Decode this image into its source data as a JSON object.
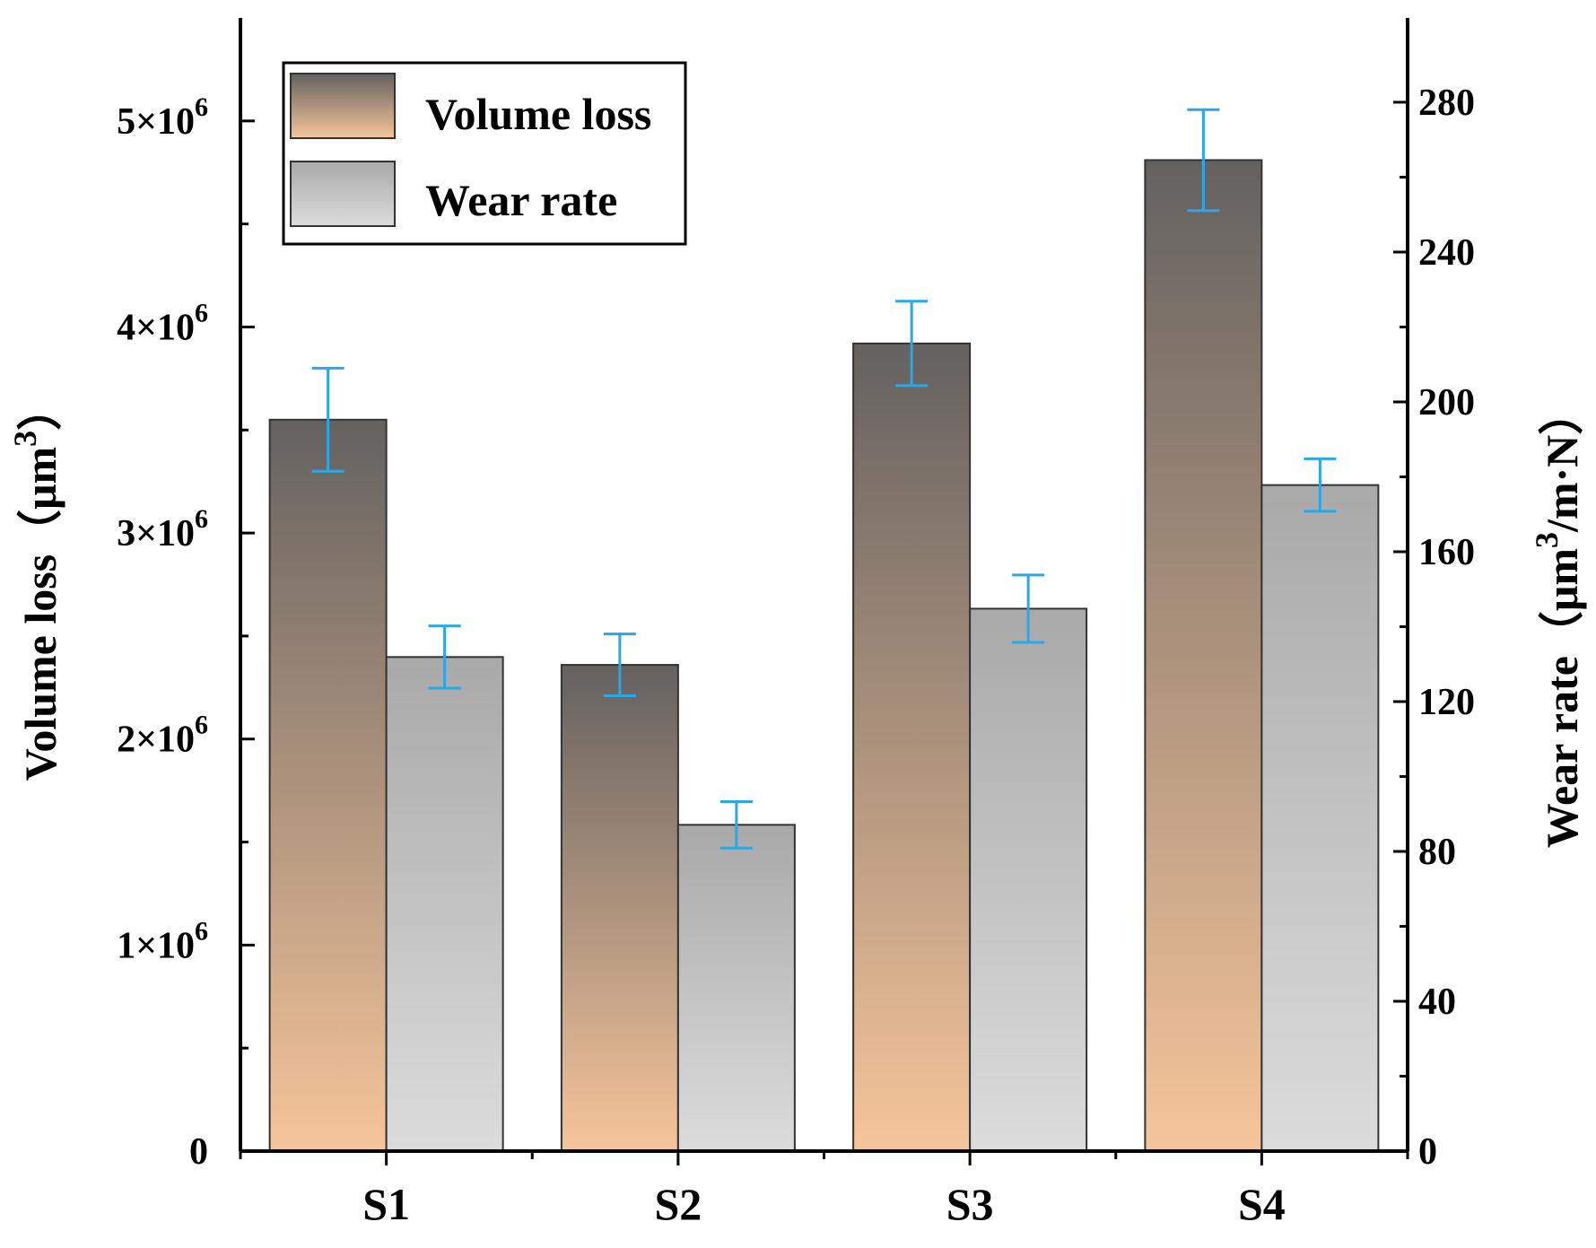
{
  "chart_data": {
    "type": "bar",
    "categories": [
      "S1",
      "S2",
      "S3",
      "S4"
    ],
    "series": [
      {
        "name": "Volume loss",
        "axis": "left",
        "values": [
          3550000,
          2360000,
          3920000,
          4810000
        ],
        "errors": [
          250000,
          150000,
          205000,
          245000
        ]
      },
      {
        "name": "Wear rate",
        "axis": "right",
        "values": [
          131.9,
          87.1,
          144.8,
          177.8
        ],
        "errors": [
          8.3,
          6.2,
          9.0,
          7.0
        ]
      }
    ],
    "y_left": {
      "label_text": "Volume loss",
      "label_unit_prefix": "（μm",
      "label_unit_sup": "3",
      "label_unit_suffix": "）",
      "ylim": [
        0,
        5500000
      ],
      "ticks": [
        {
          "value": 0,
          "base": "0",
          "exp": ""
        },
        {
          "value": 1000000,
          "base": "1×10",
          "exp": "6"
        },
        {
          "value": 2000000,
          "base": "2×10",
          "exp": "6"
        },
        {
          "value": 3000000,
          "base": "3×10",
          "exp": "6"
        },
        {
          "value": 4000000,
          "base": "4×10",
          "exp": "6"
        },
        {
          "value": 5000000,
          "base": "5×10",
          "exp": "6"
        }
      ],
      "minor_ticks": [
        500000,
        1500000,
        2500000,
        3500000,
        4500000
      ]
    },
    "y_right": {
      "label_text": "Wear rate",
      "label_unit_prefix": "（μm",
      "label_unit_sup": "3",
      "label_unit_suffix": "/m·N）",
      "ylim": [
        0,
        302.5
      ],
      "ticks": [
        0,
        40,
        80,
        120,
        160,
        200,
        240,
        280
      ],
      "minor_ticks": [
        20,
        60,
        100,
        140,
        180,
        220,
        260
      ]
    },
    "legend": {
      "position": "top-left",
      "entries": [
        "Volume loss",
        "Wear rate"
      ]
    },
    "colors": {
      "volume_top": "#646160",
      "volume_bottom": "#f6c59a",
      "wear_top": "#a9a9a9",
      "wear_bottom": "#dcdcdc",
      "error_bar": "#2aa7e6",
      "axis": "#000000"
    },
    "grid": false
  }
}
